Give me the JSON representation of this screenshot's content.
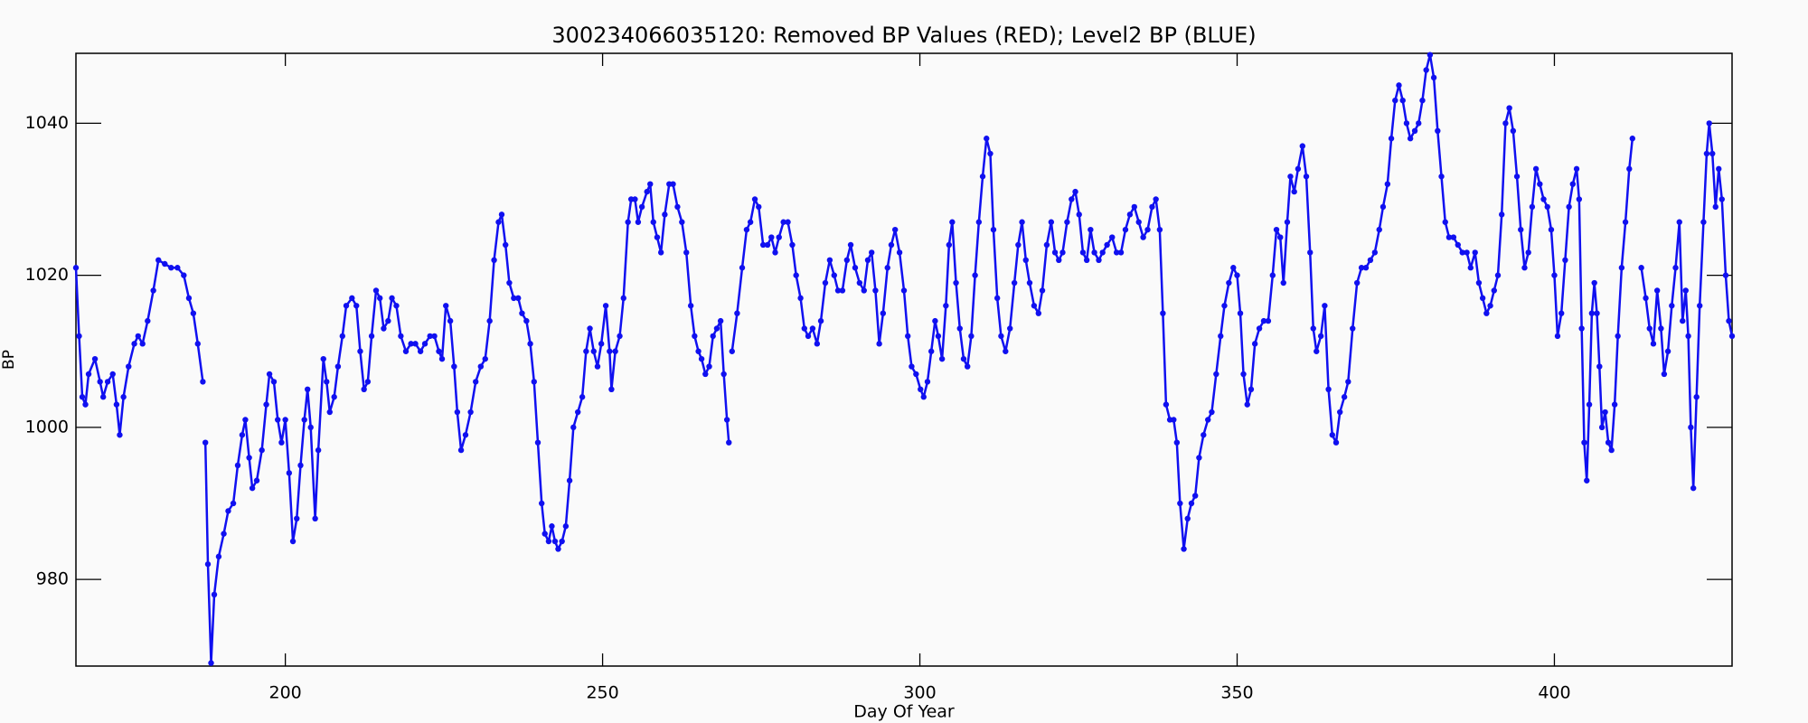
{
  "chart_data": {
    "type": "line",
    "marker": "dot",
    "title": "300234066035120: Removed BP Values (RED); Level2 BP (BLUE)",
    "xlabel": "Day Of Year",
    "ylabel": "BP",
    "color": "#1010f0",
    "xlim": [
      167,
      428
    ],
    "ylim": [
      968.6,
      1049.2
    ],
    "xticks": [
      200,
      250,
      300,
      350,
      400
    ],
    "yticks": [
      980,
      1000,
      1020,
      1040
    ],
    "x": [
      167,
      167.5,
      168,
      168.5,
      169,
      170,
      170.8,
      171.3,
      172,
      172.8,
      173.4,
      173.9,
      174.5,
      175.3,
      176.2,
      176.8,
      177.5,
      178.3,
      179.2,
      180,
      181,
      182,
      183,
      184,
      184.8,
      185.5,
      186.2,
      187,
      187.2,
      187.4,
      187.8,
      188.3,
      188.8,
      189.5,
      190.3,
      191,
      191.8,
      192.5,
      193.2,
      193.7,
      194.3,
      194.8,
      195.5,
      196.3,
      197,
      197.5,
      198.2,
      198.8,
      199.4,
      200,
      200.6,
      201.2,
      201.8,
      202.4,
      203,
      203.5,
      204,
      204.7,
      205.2,
      206,
      206.5,
      207,
      207.7,
      208.3,
      209,
      209.6,
      210.5,
      211.2,
      211.8,
      212.4,
      213,
      213.6,
      214.3,
      214.9,
      215.5,
      216.2,
      216.8,
      217.5,
      218.2,
      219,
      219.8,
      220.5,
      221.3,
      222,
      222.8,
      223.5,
      224.2,
      224.7,
      225.3,
      226,
      226.6,
      227.1,
      227.7,
      228.4,
      229.2,
      230,
      230.8,
      231.5,
      232.2,
      232.9,
      233.6,
      234.1,
      234.7,
      235.3,
      236,
      236.7,
      237.3,
      238,
      238.6,
      239.2,
      239.8,
      240.4,
      240.9,
      241.5,
      242,
      242.5,
      243,
      243.6,
      244.2,
      244.8,
      245.4,
      246.1,
      246.8,
      247.4,
      248,
      248.6,
      249.2,
      249.8,
      250.5,
      251.1,
      251.4,
      252,
      252.7,
      253.3,
      254,
      254.5,
      255.1,
      255.6,
      256.2,
      257,
      257.5,
      258,
      258.6,
      259.2,
      259.8,
      260.5,
      261.1,
      261.8,
      262.5,
      263.2,
      263.9,
      264.5,
      265.1,
      265.6,
      266.2,
      266.8,
      267.4,
      268,
      268.6,
      269.1,
      269.6,
      269.9,
      270.1,
      270.4,
      271.2,
      272,
      272.7,
      273.3,
      274,
      274.6,
      275.3,
      276,
      276.6,
      277.2,
      277.8,
      278.5,
      279.2,
      279.9,
      280.5,
      281.2,
      281.8,
      282.4,
      283.1,
      283.8,
      284.4,
      285.1,
      285.8,
      286.5,
      287.1,
      287.8,
      288.5,
      289.1,
      289.8,
      290.5,
      291.2,
      291.8,
      292.4,
      293,
      293.6,
      294.2,
      294.9,
      295.5,
      296.1,
      296.8,
      297.5,
      298.1,
      298.7,
      299.4,
      300.1,
      300.6,
      301.2,
      301.8,
      302.4,
      302.9,
      303.5,
      304.1,
      304.6,
      305.1,
      305.7,
      306.3,
      306.9,
      307.5,
      308.1,
      308.7,
      309.3,
      309.9,
      310.5,
      311.1,
      311.6,
      312.2,
      312.8,
      313.5,
      314.2,
      314.9,
      315.5,
      316.1,
      316.7,
      317.3,
      318,
      318.7,
      319.3,
      320,
      320.7,
      321.3,
      321.9,
      322.5,
      323.2,
      323.9,
      324.5,
      325.1,
      325.7,
      326.3,
      326.9,
      327.5,
      328.2,
      328.8,
      329.5,
      330.3,
      331,
      331.7,
      332.4,
      333.1,
      333.8,
      334.5,
      335.2,
      335.9,
      336.6,
      337.2,
      337.8,
      338.3,
      338.8,
      339.4,
      340,
      340.5,
      341,
      341.6,
      342.2,
      342.8,
      343.4,
      344,
      344.7,
      345.4,
      346,
      346.7,
      347.4,
      348,
      348.7,
      349.4,
      350,
      350.5,
      351,
      351.6,
      352.2,
      352.8,
      353.5,
      354.2,
      354.9,
      355.6,
      356.2,
      356.8,
      357.3,
      357.9,
      358.4,
      359,
      359.6,
      360.3,
      360.9,
      361.5,
      362,
      362.5,
      363.2,
      363.8,
      364.4,
      365,
      365.6,
      366.2,
      366.9,
      367.5,
      368.2,
      368.9,
      369.6,
      370.3,
      371,
      371.7,
      372.4,
      373,
      373.7,
      374.3,
      374.9,
      375.5,
      376.1,
      376.7,
      377.3,
      378,
      378.6,
      379.2,
      379.8,
      380.4,
      381,
      381.6,
      382.2,
      382.8,
      383.4,
      384.1,
      384.8,
      385.5,
      386.2,
      386.8,
      387.5,
      388.1,
      388.7,
      389.3,
      389.9,
      390.5,
      391.1,
      391.7,
      392.3,
      392.9,
      393.5,
      394.1,
      394.7,
      395.3,
      395.9,
      396.5,
      397.1,
      397.7,
      398.3,
      398.9,
      399.5,
      400,
      400.5,
      401.1,
      401.7,
      402.3,
      402.9,
      403.5,
      403.9,
      404.3,
      404.7,
      405.1,
      405.5,
      405.9,
      406.3,
      406.7,
      407.1,
      407.5,
      408,
      408.5,
      409,
      409.5,
      410,
      410.6,
      411.2,
      411.8,
      412.3,
      412.9,
      413.7,
      414.4,
      415,
      415.6,
      416.2,
      416.8,
      417.3,
      417.9,
      418.5,
      419.1,
      419.7,
      420.2,
      420.7,
      421.1,
      421.5,
      421.9,
      422.4,
      422.9,
      423.5,
      424,
      424.4,
      424.9,
      425.4,
      425.9,
      426.4,
      427,
      427.5,
      428
    ],
    "values": [
      1021,
      1012,
      1004,
      1003,
      1007,
      1009,
      1006,
      1004,
      1006,
      1007,
      1003,
      999,
      1004,
      1008,
      1011,
      1012,
      1011,
      1014,
      1018,
      1022,
      1021.5,
      1021,
      1021,
      1020,
      1017,
      1015,
      1011,
      1006,
      null,
      998,
      982,
      969,
      978,
      983,
      986,
      989,
      990,
      995,
      999,
      1001,
      996,
      992,
      993,
      997,
      1003,
      1007,
      1006,
      1001,
      998,
      1001,
      994,
      985,
      988,
      995,
      1001,
      1005,
      1000,
      988,
      997,
      1009,
      1006,
      1002,
      1004,
      1008,
      1012,
      1016,
      1017,
      1016,
      1010,
      1005,
      1006,
      1012,
      1018,
      1017,
      1013,
      1014,
      1017,
      1016,
      1012,
      1010,
      1011,
      1011,
      1010,
      1011,
      1012,
      1012,
      1010,
      1009,
      1016,
      1014,
      1008,
      1002,
      997,
      999,
      1002,
      1006,
      1008,
      1009,
      1014,
      1022,
      1027,
      1028,
      1024,
      1019,
      1017,
      1017,
      1015,
      1014,
      1011,
      1006,
      998,
      990,
      986,
      985,
      987,
      985,
      984,
      985,
      987,
      993,
      1000,
      1002,
      1004,
      1010,
      1013,
      1010,
      1008,
      1011,
      1016,
      1010,
      1005,
      1010,
      1012,
      1017,
      1027,
      1030,
      1030,
      1027,
      1029,
      1031,
      1032,
      1027,
      1025,
      1023,
      1028,
      1032,
      1032,
      1029,
      1027,
      1023,
      1016,
      1012,
      1010,
      1009,
      1007,
      1008,
      1012,
      1013,
      1014,
      1007,
      1001,
      998,
      null,
      1010,
      1015,
      1021,
      1026,
      1027,
      1030,
      1029,
      1024,
      1024,
      1025,
      1023,
      1025,
      1027,
      1027,
      1024,
      1020,
      1017,
      1013,
      1012,
      1013,
      1011,
      1014,
      1019,
      1022,
      1020,
      1018,
      1018,
      1022,
      1024,
      1021,
      1019,
      1018,
      1022,
      1023,
      1018,
      1011,
      1015,
      1021,
      1024,
      1026,
      1023,
      1018,
      1012,
      1008,
      1007,
      1005,
      1004,
      1006,
      1010,
      1014,
      1012,
      1009,
      1016,
      1024,
      1027,
      1019,
      1013,
      1009,
      1008,
      1012,
      1020,
      1027,
      1033,
      1038,
      1036,
      1026,
      1017,
      1012,
      1010,
      1013,
      1019,
      1024,
      1027,
      1022,
      1019,
      1016,
      1015,
      1018,
      1024,
      1027,
      1023,
      1022,
      1023,
      1027,
      1030,
      1031,
      1028,
      1023,
      1022,
      1026,
      1023,
      1022,
      1023,
      1024,
      1025,
      1023,
      1023,
      1026,
      1028,
      1029,
      1027,
      1025,
      1026,
      1029,
      1030,
      1026,
      1015,
      1003,
      1001,
      1001,
      998,
      990,
      984,
      988,
      990,
      991,
      996,
      999,
      1001,
      1002,
      1007,
      1012,
      1016,
      1019,
      1021,
      1020,
      1015,
      1007,
      1003,
      1005,
      1011,
      1013,
      1014,
      1014,
      1020,
      1026,
      1025,
      1019,
      1027,
      1033,
      1031,
      1034,
      1037,
      1033,
      1023,
      1013,
      1010,
      1012,
      1016,
      1005,
      999,
      998,
      1002,
      1004,
      1006,
      1013,
      1019,
      1021,
      1021,
      1022,
      1023,
      1026,
      1029,
      1032,
      1038,
      1043,
      1045,
      1043,
      1040,
      1038,
      1039,
      1040,
      1043,
      1047,
      1049,
      1046,
      1039,
      1033,
      1027,
      1025,
      1025,
      1024,
      1023,
      1023,
      1021,
      1023,
      1019,
      1017,
      1015,
      1016,
      1018,
      1020,
      1028,
      1040,
      1042,
      1039,
      1033,
      1026,
      1021,
      1023,
      1029,
      1034,
      1032,
      1030,
      1029,
      1026,
      1020,
      1012,
      1015,
      1022,
      1029,
      1032,
      1034,
      1030,
      1013,
      998,
      993,
      1003,
      1015,
      1019,
      1015,
      1008,
      1000,
      1002,
      998,
      997,
      1003,
      1012,
      1021,
      1027,
      1034,
      1038,
      null,
      1021,
      1017,
      1013,
      1011,
      1018,
      1013,
      1007,
      1010,
      1016,
      1021,
      1027,
      1014,
      1018,
      1012,
      1000,
      992,
      1004,
      1016,
      1027,
      1036,
      1040,
      1036,
      1029,
      1034,
      1030,
      1020,
      1014,
      1012
    ]
  }
}
